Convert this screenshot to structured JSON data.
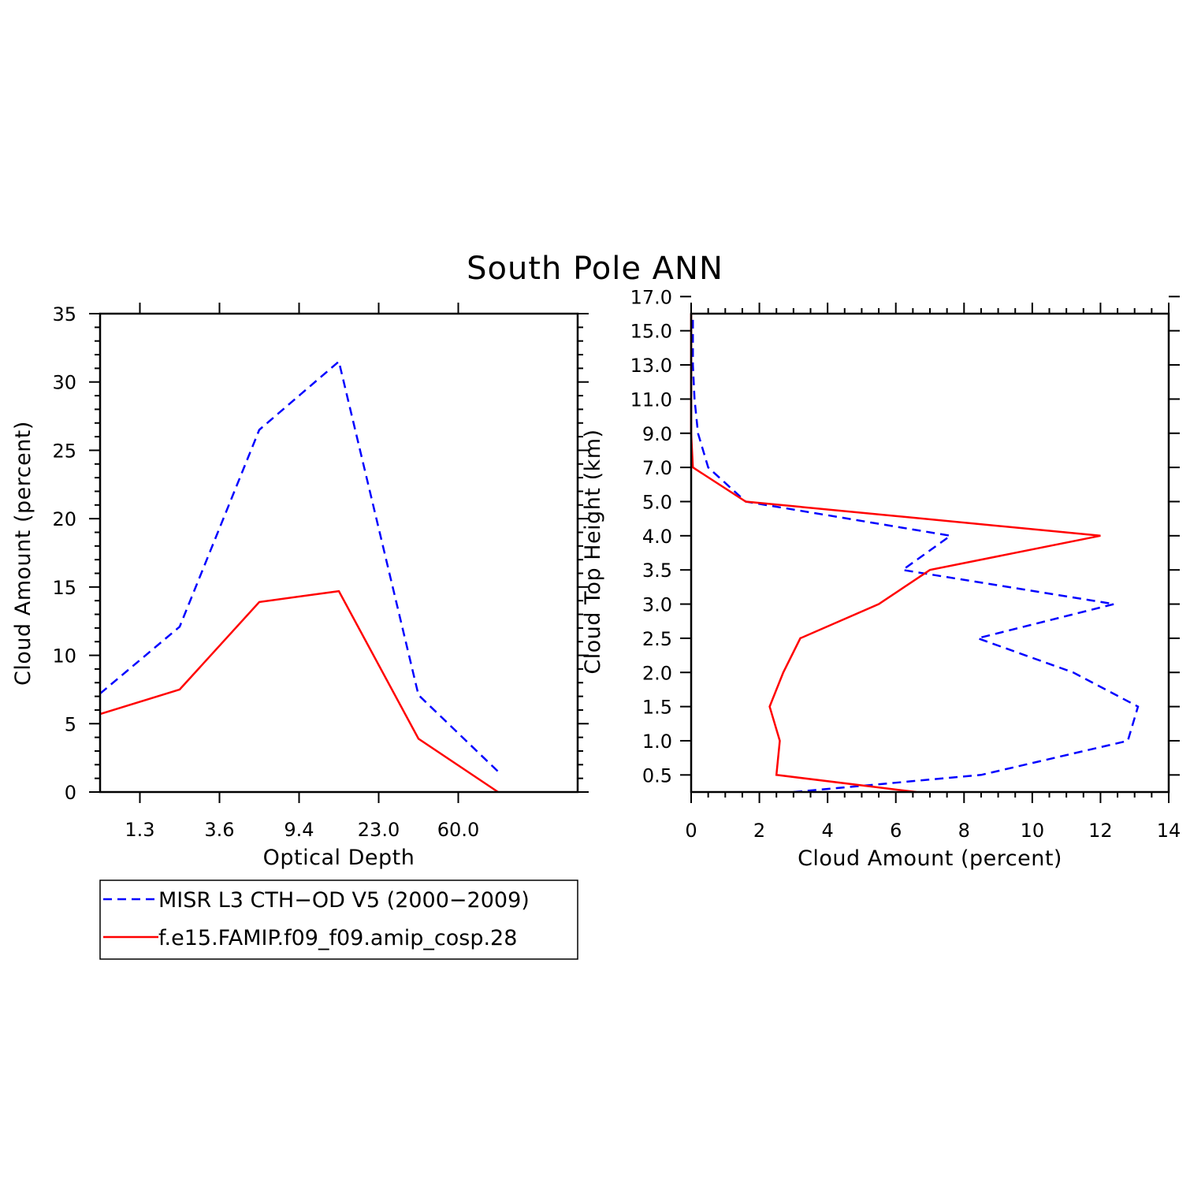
{
  "title": "South Pole ANN",
  "colors": {
    "obs": "#0000ff",
    "model": "#ff0000",
    "axis": "#000000"
  },
  "legend": {
    "entries": [
      {
        "label": "MISR L3 CTH−OD V5 (2000−2009)",
        "style": "dashed",
        "color": "#0000ff"
      },
      {
        "label": "f.e15.FAMIP.f09_f09.amip_cosp.28",
        "style": "solid",
        "color": "#ff0000"
      }
    ]
  },
  "chart_data": [
    {
      "type": "line",
      "name": "optical-depth-panel",
      "xlabel": "Optical Depth",
      "ylabel": "Cloud Amount (percent)",
      "ylim": [
        0,
        35
      ],
      "yticks": [
        "0",
        "5",
        "10",
        "15",
        "20",
        "25",
        "30",
        "35"
      ],
      "x_index_range": [
        0,
        6
      ],
      "xticks": [
        {
          "pos": 0.5,
          "label": "1.3"
        },
        {
          "pos": 1.5,
          "label": "3.6"
        },
        {
          "pos": 2.5,
          "label": "9.4"
        },
        {
          "pos": 3.5,
          "label": "23.0"
        },
        {
          "pos": 4.5,
          "label": "60.0"
        }
      ],
      "series": [
        {
          "name": "MISR L3 CTH−OD V5 (2000−2009)",
          "x": [
            0,
            1,
            2,
            3,
            4,
            5
          ],
          "values": [
            7.2,
            12.1,
            26.5,
            31.5,
            7.1,
            1.5
          ]
        },
        {
          "name": "f.e15.FAMIP.f09_f09.amip_cosp.28",
          "x": [
            0,
            1,
            2,
            3,
            4,
            5
          ],
          "values": [
            5.7,
            7.5,
            13.9,
            14.7,
            3.9,
            0.0
          ]
        }
      ]
    },
    {
      "type": "line",
      "name": "cloud-top-height-panel",
      "xlabel": "Cloud Amount (percent)",
      "ylabel": "Cloud Top Height (km)",
      "xlim": [
        0,
        14
      ],
      "xticks": [
        "0",
        "2",
        "4",
        "6",
        "8",
        "10",
        "12",
        "14"
      ],
      "y_index_range": [
        -0.5,
        13.5
      ],
      "yticks": [
        "0.5",
        "1.0",
        "1.5",
        "2.0",
        "2.5",
        "3.0",
        "3.5",
        "4.0",
        "5.0",
        "7.0",
        "9.0",
        "11.0",
        "13.0",
        "15.0",
        "17.0"
      ],
      "series": [
        {
          "name": "MISR L3 CTH−OD V5 (2000−2009)",
          "y": [
            -0.5,
            0,
            1,
            2,
            3,
            4,
            5,
            6,
            7,
            8,
            9,
            10,
            11,
            12,
            13,
            13.5
          ],
          "values": [
            3.0,
            8.5,
            12.8,
            13.1,
            11.2,
            8.4,
            12.4,
            6.2,
            7.6,
            1.6,
            0.5,
            0.2,
            0.1,
            0.05,
            0.05,
            0.05
          ]
        },
        {
          "name": "f.e15.FAMIP.f09_f09.amip_cosp.28",
          "y": [
            -0.5,
            0,
            1,
            2,
            3,
            4,
            5,
            6,
            7,
            8,
            9,
            10,
            11,
            12,
            13,
            13.5
          ],
          "values": [
            6.6,
            2.5,
            2.6,
            2.3,
            2.7,
            3.2,
            5.5,
            7.0,
            12.0,
            1.6,
            0.05,
            0.0,
            0.0,
            0.0,
            0.0,
            0.0
          ]
        }
      ]
    }
  ]
}
